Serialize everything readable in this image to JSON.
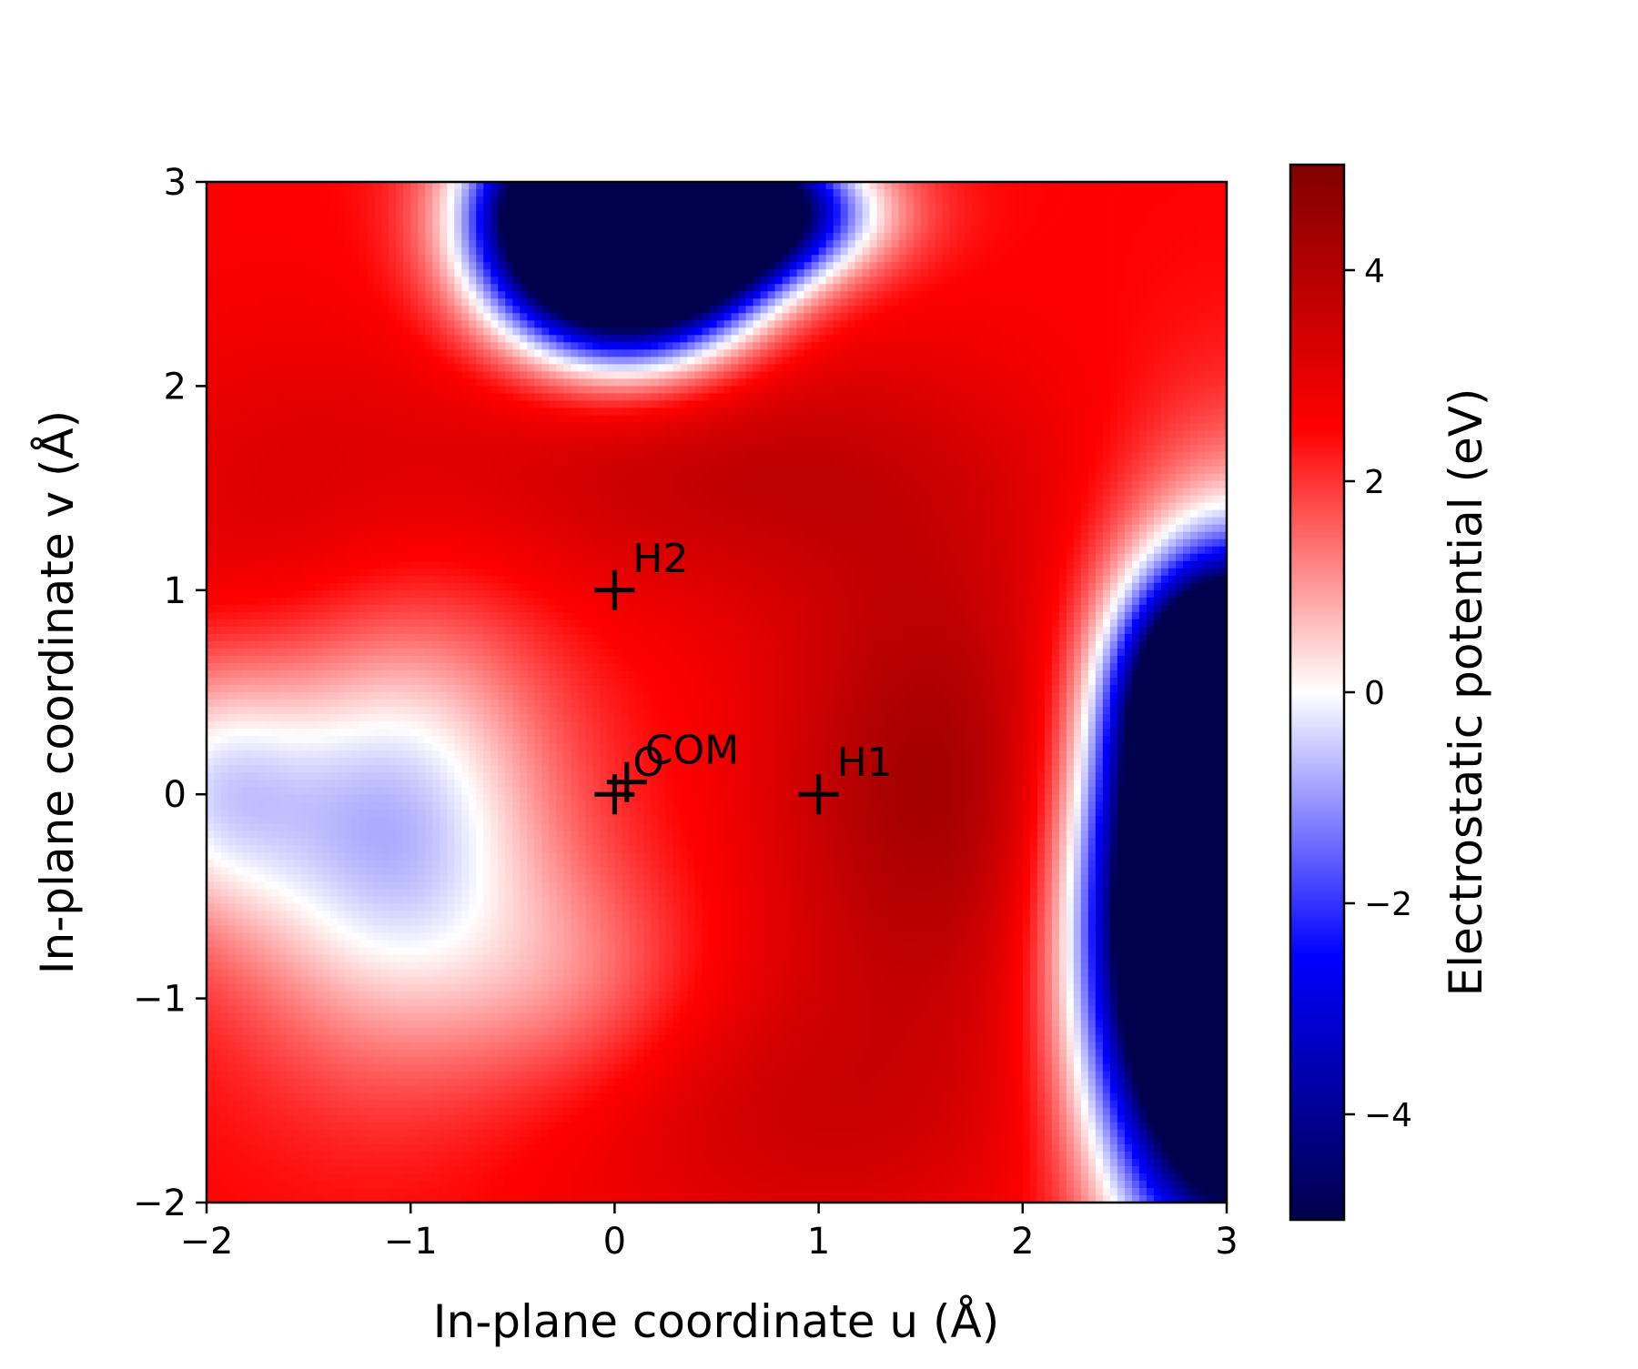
{
  "chart_data": {
    "type": "heatmap",
    "title": "",
    "xlabel": "In-plane coordinate u (Å)",
    "ylabel": "In-plane coordinate v (Å)",
    "xlim": [
      -2,
      3
    ],
    "ylim": [
      -2,
      3
    ],
    "x_ticks": [
      {
        "value": -2,
        "label": "−2"
      },
      {
        "value": -1,
        "label": "−1"
      },
      {
        "value": 0,
        "label": "0"
      },
      {
        "value": 1,
        "label": "1"
      },
      {
        "value": 2,
        "label": "2"
      },
      {
        "value": 3,
        "label": "3"
      }
    ],
    "y_ticks": [
      {
        "value": -2,
        "label": "−2"
      },
      {
        "value": -1,
        "label": "−1"
      },
      {
        "value": 0,
        "label": "0"
      },
      {
        "value": 1,
        "label": "1"
      },
      {
        "value": 2,
        "label": "2"
      },
      {
        "value": 3,
        "label": "3"
      }
    ],
    "colormap": "seismic",
    "colorbar": {
      "label": "Electrostatic potential (eV)",
      "vmin": -5,
      "vmax": 5,
      "ticks": [
        {
          "value": -4,
          "label": "−4"
        },
        {
          "value": -2,
          "label": "−2"
        },
        {
          "value": 0,
          "label": "0"
        },
        {
          "value": 2,
          "label": "2"
        },
        {
          "value": 4,
          "label": "4"
        }
      ],
      "colors": [
        "#00004c",
        "#0000ff",
        "#ffffff",
        "#ff0000",
        "#800000"
      ]
    },
    "grid": false,
    "markers": [
      {
        "label": "O",
        "u": 0.0,
        "v": 0.0
      },
      {
        "label": "H1",
        "u": 1.0,
        "v": 0.0
      },
      {
        "label": "H2",
        "u": 0.0,
        "v": 1.0
      },
      {
        "label": "COM",
        "u": 0.06,
        "v": 0.06
      }
    ],
    "field_features": [
      {
        "kind": "negative-well",
        "u": 0.1,
        "v": 2.75,
        "value": -5
      },
      {
        "kind": "negative-well",
        "u": 3.0,
        "v": -0.5,
        "value": -5
      },
      {
        "kind": "near-zero-lobe",
        "u": -1.5,
        "v": 0.0,
        "value": -0.5
      },
      {
        "kind": "positive-max",
        "u": 1.5,
        "v": 0.0,
        "value": 5
      }
    ]
  }
}
